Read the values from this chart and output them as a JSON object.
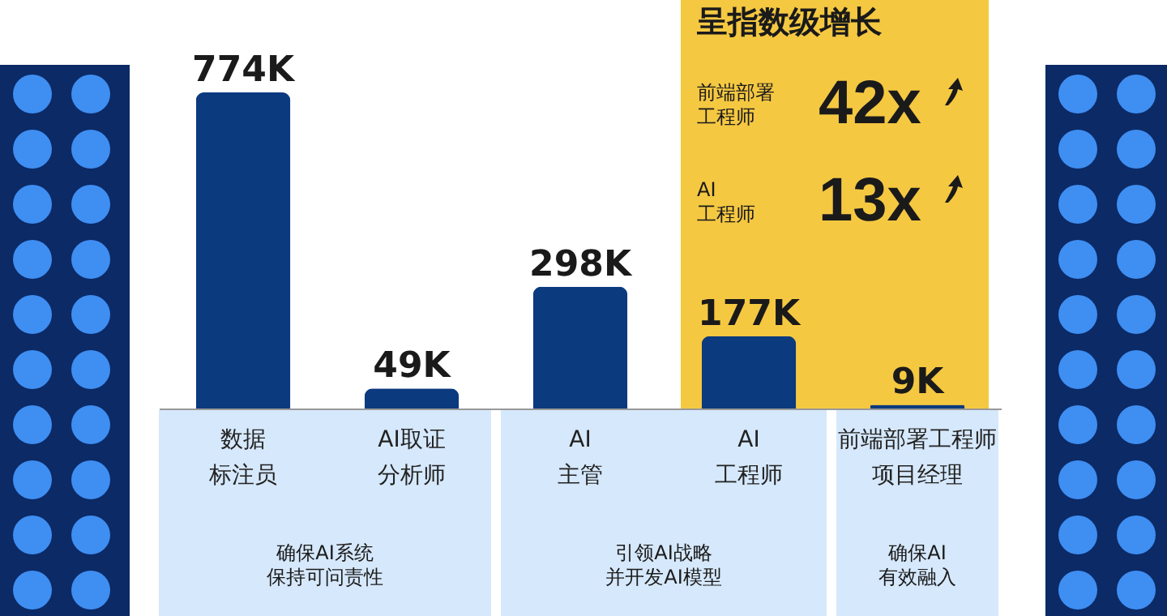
{
  "chart_data": {
    "type": "bar",
    "categories": [
      "数据标注员",
      "AI取证分析师",
      "AI主管",
      "AI工程师",
      "前端部署工程师项目经理"
    ],
    "values": [
      774,
      49,
      298,
      177,
      9
    ],
    "value_labels": [
      "774K",
      "49K",
      "298K",
      "177K",
      "9K"
    ],
    "color": "#0b3a7e",
    "tick_labels": "x",
    "annotations": [
      "呈指数级增长",
      "前端部署工程师",
      "42x",
      "AI工程师",
      "13x",
      "确保AI系统保持可问责性",
      "引领AI战略并开发AI模型",
      "确保AI有效融入"
    ]
  }
}
